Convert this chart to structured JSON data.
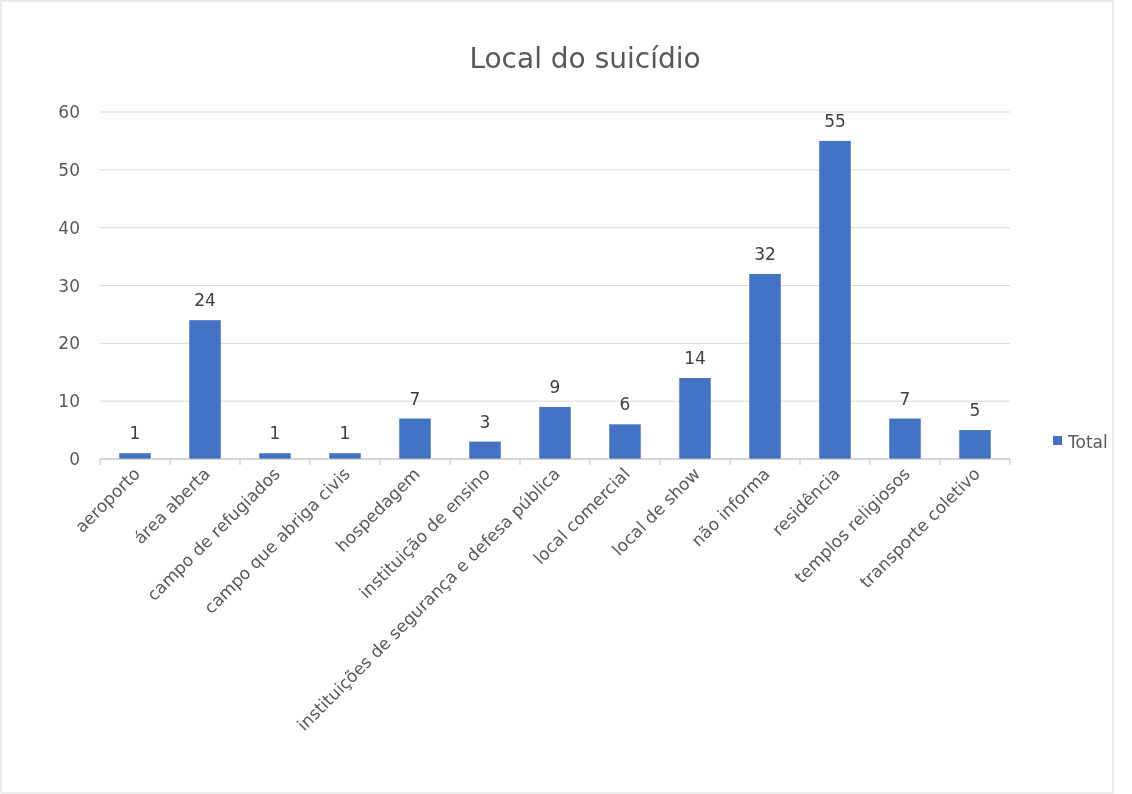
{
  "chart_data": {
    "type": "bar",
    "title": "Local do suicídio",
    "categories": [
      "aeroporto",
      "área aberta",
      "campo de refugiados",
      "campo que abriga civis",
      "hospedagem",
      "instituição de ensino",
      "instituições de segurança e defesa pública",
      "local comercial",
      "local de show",
      "não informa",
      "residência",
      "templos religiosos",
      "transporte coletivo"
    ],
    "series": [
      {
        "name": "Total",
        "color": "#4472c4",
        "values": [
          1,
          24,
          1,
          1,
          7,
          3,
          9,
          6,
          14,
          32,
          55,
          7,
          5
        ]
      }
    ],
    "ylim": [
      0,
      60
    ],
    "yticks": [
      0,
      10,
      20,
      30,
      40,
      50,
      60
    ],
    "grid": "y",
    "legend": "right",
    "data_labels": true
  }
}
